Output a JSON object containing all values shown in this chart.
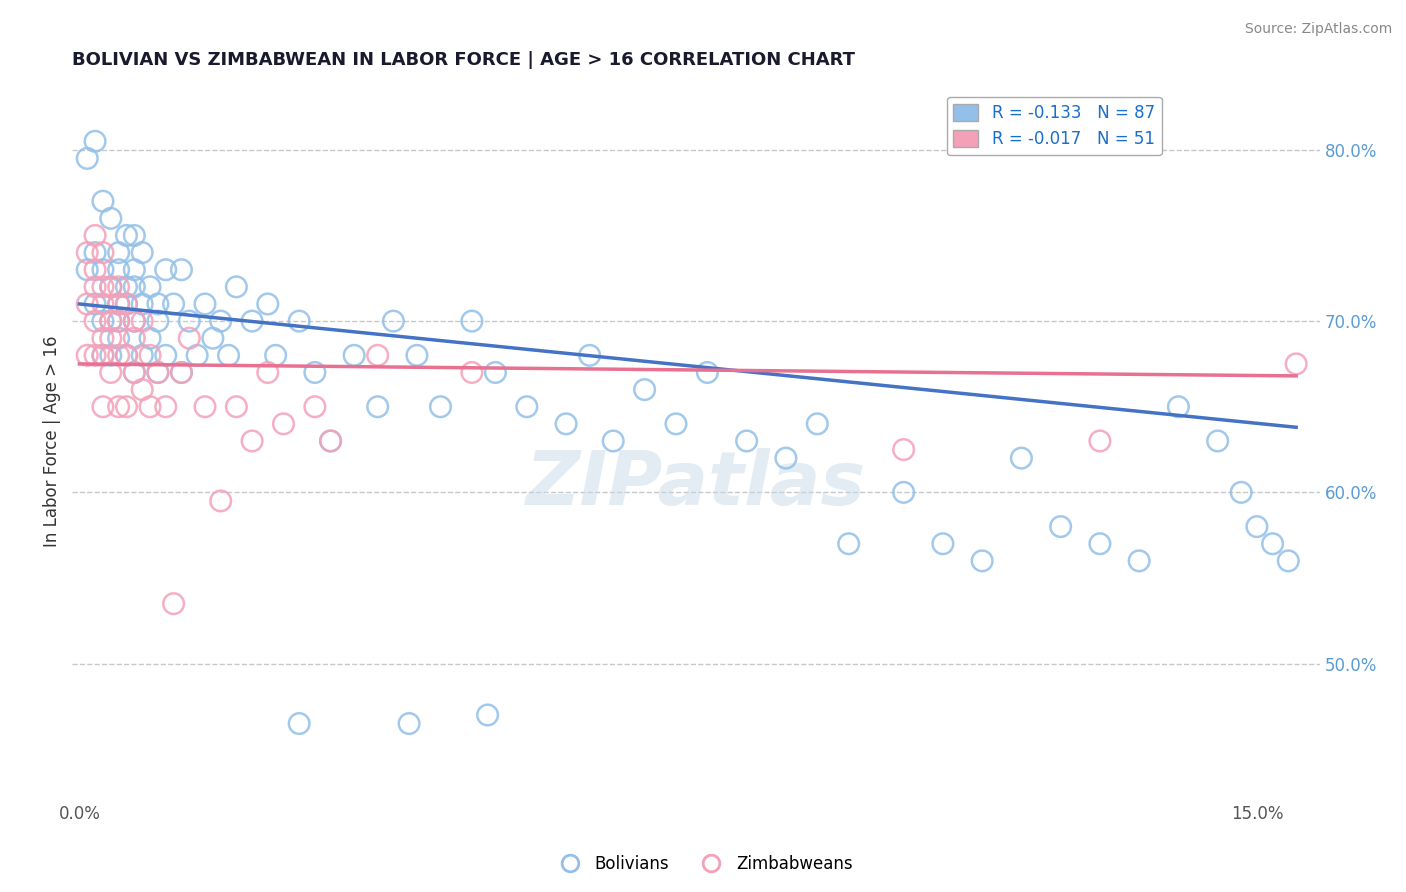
{
  "title": "BOLIVIAN VS ZIMBABWEAN IN LABOR FORCE | AGE > 16 CORRELATION CHART",
  "source": "Source: ZipAtlas.com",
  "xlim": [
    -0.001,
    0.158
  ],
  "ylim": [
    0.42,
    0.84
  ],
  "blue_R": -0.133,
  "blue_N": 87,
  "pink_R": -0.017,
  "pink_N": 51,
  "blue_color": "#92c0e8",
  "pink_color": "#f4a0b8",
  "blue_line_color": "#4472c4",
  "pink_line_color": "#e87090",
  "legend_label_blue": "Bolivians",
  "legend_label_pink": "Zimbabweans",
  "blue_trend_x": [
    0.0,
    0.155
  ],
  "blue_trend_y": [
    0.71,
    0.638
  ],
  "pink_trend_x": [
    0.0,
    0.155
  ],
  "pink_trend_y": [
    0.675,
    0.668
  ],
  "grid_color": "#c8c8c8",
  "background_color": "#ffffff",
  "blue_scatter_x": [
    0.001,
    0.001,
    0.002,
    0.002,
    0.002,
    0.003,
    0.003,
    0.003,
    0.003,
    0.004,
    0.004,
    0.004,
    0.004,
    0.005,
    0.005,
    0.005,
    0.005,
    0.005,
    0.006,
    0.006,
    0.006,
    0.006,
    0.007,
    0.007,
    0.007,
    0.007,
    0.007,
    0.008,
    0.008,
    0.008,
    0.009,
    0.009,
    0.01,
    0.01,
    0.01,
    0.011,
    0.011,
    0.012,
    0.013,
    0.013,
    0.014,
    0.015,
    0.016,
    0.017,
    0.018,
    0.019,
    0.02,
    0.022,
    0.024,
    0.025,
    0.028,
    0.03,
    0.032,
    0.035,
    0.038,
    0.04,
    0.043,
    0.046,
    0.05,
    0.053,
    0.057,
    0.062,
    0.065,
    0.068,
    0.072,
    0.076,
    0.08,
    0.085,
    0.09,
    0.094,
    0.098,
    0.105,
    0.11,
    0.115,
    0.12,
    0.125,
    0.13,
    0.135,
    0.14,
    0.145,
    0.148,
    0.15,
    0.152,
    0.154,
    0.028,
    0.042,
    0.052
  ],
  "blue_scatter_y": [
    0.795,
    0.73,
    0.805,
    0.74,
    0.71,
    0.77,
    0.73,
    0.7,
    0.68,
    0.76,
    0.72,
    0.7,
    0.68,
    0.74,
    0.71,
    0.69,
    0.73,
    0.7,
    0.75,
    0.71,
    0.68,
    0.72,
    0.73,
    0.7,
    0.67,
    0.72,
    0.75,
    0.71,
    0.68,
    0.74,
    0.72,
    0.69,
    0.71,
    0.67,
    0.7,
    0.73,
    0.68,
    0.71,
    0.73,
    0.67,
    0.7,
    0.68,
    0.71,
    0.69,
    0.7,
    0.68,
    0.72,
    0.7,
    0.71,
    0.68,
    0.7,
    0.67,
    0.63,
    0.68,
    0.65,
    0.7,
    0.68,
    0.65,
    0.7,
    0.67,
    0.65,
    0.64,
    0.68,
    0.63,
    0.66,
    0.64,
    0.67,
    0.63,
    0.62,
    0.64,
    0.57,
    0.6,
    0.57,
    0.56,
    0.62,
    0.58,
    0.57,
    0.56,
    0.65,
    0.63,
    0.6,
    0.58,
    0.57,
    0.56,
    0.465,
    0.465,
    0.47
  ],
  "pink_scatter_x": [
    0.001,
    0.001,
    0.001,
    0.002,
    0.002,
    0.002,
    0.002,
    0.002,
    0.003,
    0.003,
    0.003,
    0.003,
    0.003,
    0.003,
    0.004,
    0.004,
    0.004,
    0.004,
    0.005,
    0.005,
    0.005,
    0.005,
    0.005,
    0.006,
    0.006,
    0.006,
    0.007,
    0.007,
    0.007,
    0.008,
    0.008,
    0.009,
    0.009,
    0.01,
    0.011,
    0.012,
    0.013,
    0.014,
    0.016,
    0.018,
    0.02,
    0.022,
    0.024,
    0.026,
    0.03,
    0.032,
    0.038,
    0.05,
    0.105,
    0.13,
    0.155
  ],
  "pink_scatter_y": [
    0.74,
    0.71,
    0.68,
    0.73,
    0.7,
    0.68,
    0.72,
    0.75,
    0.74,
    0.71,
    0.68,
    0.72,
    0.69,
    0.65,
    0.7,
    0.67,
    0.69,
    0.72,
    0.71,
    0.68,
    0.72,
    0.65,
    0.7,
    0.68,
    0.71,
    0.65,
    0.7,
    0.67,
    0.69,
    0.66,
    0.7,
    0.68,
    0.65,
    0.67,
    0.65,
    0.535,
    0.67,
    0.69,
    0.65,
    0.595,
    0.65,
    0.63,
    0.67,
    0.64,
    0.65,
    0.63,
    0.68,
    0.67,
    0.625,
    0.63,
    0.675
  ]
}
